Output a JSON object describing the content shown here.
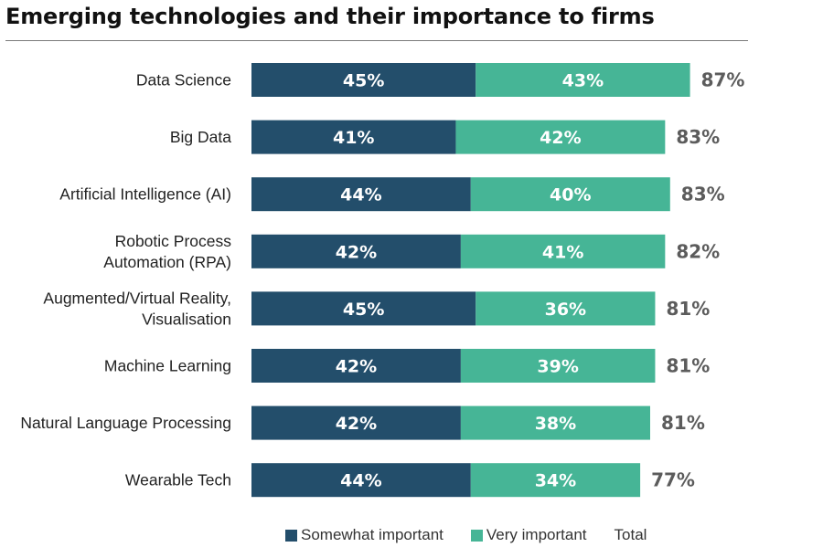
{
  "title": "Emerging technologies and their importance to firms",
  "colors": {
    "somewhat": "#234e6b",
    "very": "#46b596",
    "total": "#5c5c5c"
  },
  "chart_data": {
    "type": "bar",
    "orientation": "horizontal",
    "stacked": true,
    "categories": [
      [
        "Data Science"
      ],
      [
        "Big Data"
      ],
      [
        "Artificial Intelligence (AI)"
      ],
      [
        "Robotic Process",
        "Automation (RPA)"
      ],
      [
        "Augmented/Virtual Reality,",
        "Visualisation"
      ],
      [
        "Machine Learning"
      ],
      [
        "Natural Language Processing"
      ],
      [
        "Wearable Tech"
      ]
    ],
    "series": [
      {
        "name": "Somewhat important",
        "values": [
          45,
          41,
          44,
          42,
          45,
          42,
          42,
          44
        ],
        "labels": [
          "45%",
          "41%",
          "44%",
          "42%",
          "45%",
          "42%",
          "42%",
          "44%"
        ]
      },
      {
        "name": "Very important",
        "values": [
          43,
          42,
          40,
          41,
          36,
          39,
          38,
          34
        ],
        "labels": [
          "43%",
          "42%",
          "40%",
          "41%",
          "36%",
          "39%",
          "38%",
          "34%"
        ]
      }
    ],
    "totals": {
      "name": "Total",
      "values": [
        87,
        83,
        83,
        82,
        81,
        81,
        81,
        77
      ],
      "labels": [
        "87%",
        "83%",
        "83%",
        "82%",
        "81%",
        "81%",
        "81%",
        "77%"
      ]
    },
    "xlim": [
      0,
      100
    ],
    "grid": false,
    "legend_position": "bottom"
  },
  "legend": [
    {
      "label": "Somewhat important",
      "color_key": "somewhat"
    },
    {
      "label": "Very important",
      "color_key": "very"
    },
    {
      "label": "Total",
      "color_key": null
    }
  ]
}
